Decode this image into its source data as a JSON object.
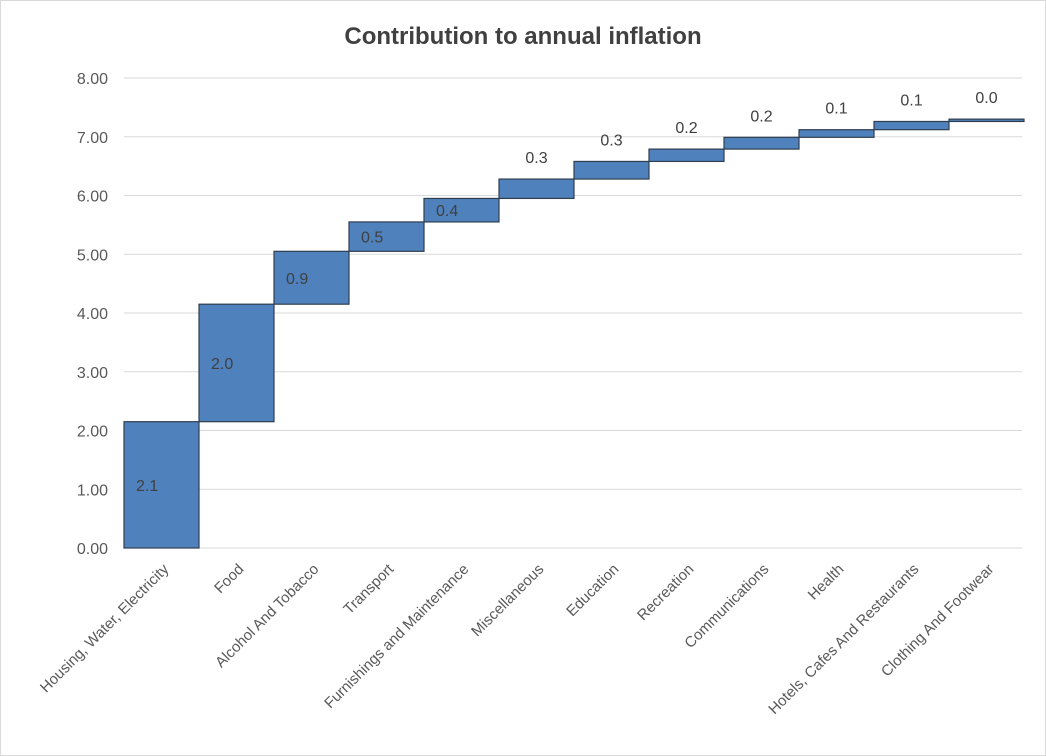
{
  "chart_data": {
    "type": "bar",
    "title": "Contribution to annual inflation",
    "xlabel": "",
    "ylabel": "",
    "ylim": [
      0,
      8
    ],
    "yticks": [
      "0.00",
      "1.00",
      "2.00",
      "3.00",
      "4.00",
      "5.00",
      "6.00",
      "7.00",
      "8.00"
    ],
    "grid": true,
    "legend": "none",
    "bar_color": "#4f81bd",
    "categories": [
      "Housing, Water, Electricity",
      "Food",
      "Alcohol And Tobacco",
      "Transport",
      "Furnishings and Maintenance",
      "Miscellaneous",
      "Education",
      "Recreation",
      "Communications",
      "Health",
      "Hotels, Cafes And Restaurants",
      "Clothing And Footwear"
    ],
    "values": [
      2.15,
      2.0,
      0.9,
      0.5,
      0.4,
      0.33,
      0.3,
      0.21,
      0.2,
      0.13,
      0.14,
      0.04
    ],
    "data_labels": [
      "2.1",
      "2.0",
      "0.9",
      "0.5",
      "0.4",
      "0.3",
      "0.3",
      "0.2",
      "0.2",
      "0.1",
      "0.1",
      "0.0"
    ]
  }
}
